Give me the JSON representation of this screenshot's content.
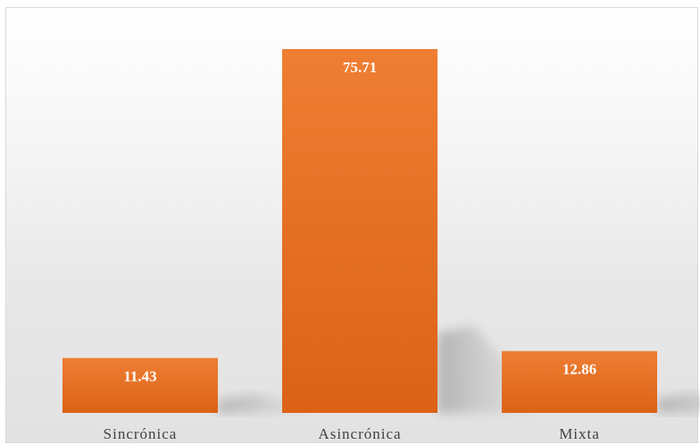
{
  "chart_data": {
    "type": "bar",
    "categories": [
      "Sincrónica",
      "Asincrónica",
      "Mixta"
    ],
    "values": [
      11.43,
      75.71,
      12.86
    ],
    "value_labels": [
      "11.43",
      "75.71",
      "12.86"
    ],
    "title": "",
    "xlabel": "",
    "ylabel": "",
    "ylim": [
      0,
      80
    ],
    "grid": false,
    "legend": "none",
    "bar_color": "#e8732a",
    "bar_color_dark": "#d95f14",
    "label_color": "#ffffff"
  }
}
